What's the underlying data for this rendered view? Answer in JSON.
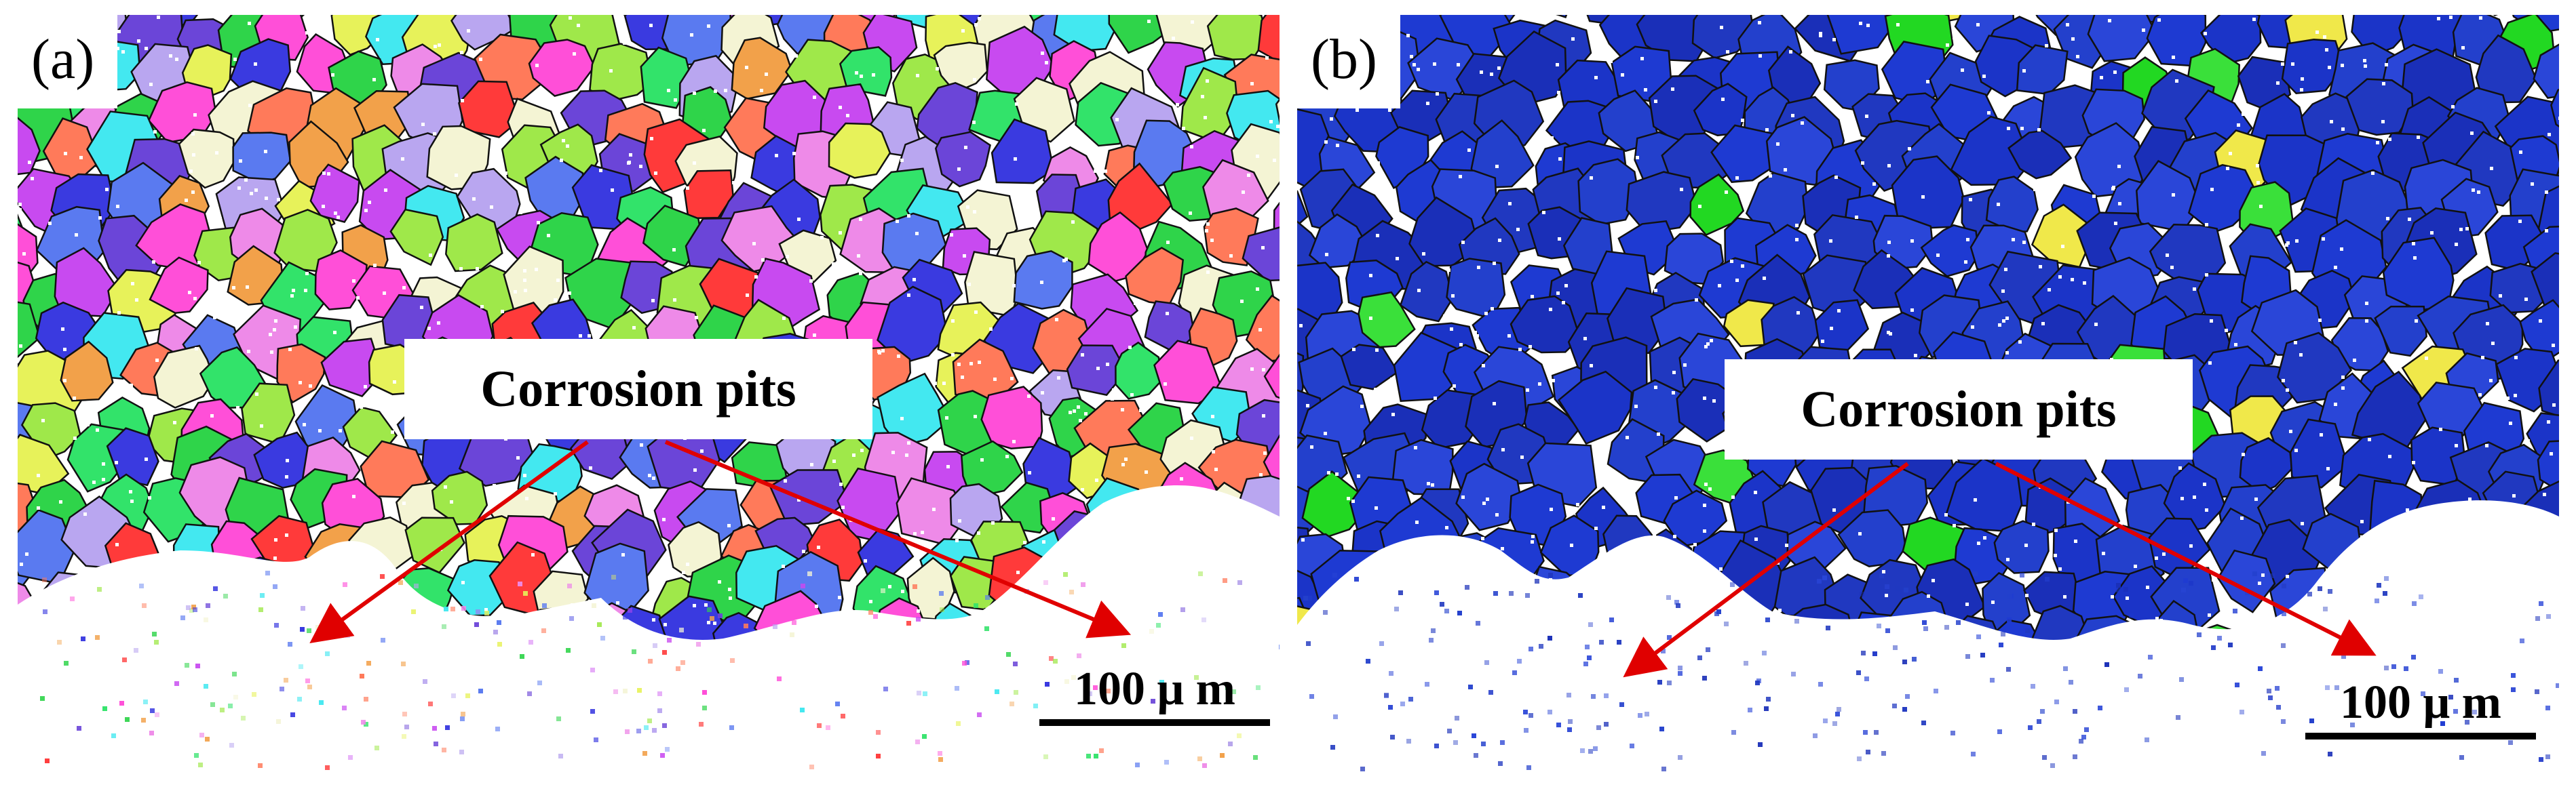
{
  "figure": {
    "panels": [
      {
        "label": "(a)",
        "callout": "Corrosion pits",
        "scale_bar": "100 μ m",
        "map_style": "multicolor-grains",
        "palette": [
          "#2fd44a",
          "#32e36a",
          "#3a3ae0",
          "#ff4fd8",
          "#f2a14a",
          "#b9a6f0",
          "#ff3a3a",
          "#e7f25a",
          "#43e8f0",
          "#ee8ae8",
          "#9fe84a",
          "#6b45d8",
          "#f4f4d4",
          "#ff7a5a",
          "#5a7af0",
          "#c84af0"
        ],
        "pit_fill": "#ffffff",
        "arrow_color": "#e00000"
      },
      {
        "label": "(b)",
        "callout": "Corrosion pits",
        "scale_bar": "100 μ m",
        "map_style": "blue-grains",
        "palette": [
          "#1b34c8",
          "#1e3ad2",
          "#2340cc",
          "#1a2fb8",
          "#2a46d8",
          "#2038c0"
        ],
        "accent_palette": [
          "#22d822",
          "#3ae03a",
          "#f0e84a"
        ],
        "pit_fill": "#ffffff",
        "arrow_color": "#e00000"
      }
    ]
  }
}
